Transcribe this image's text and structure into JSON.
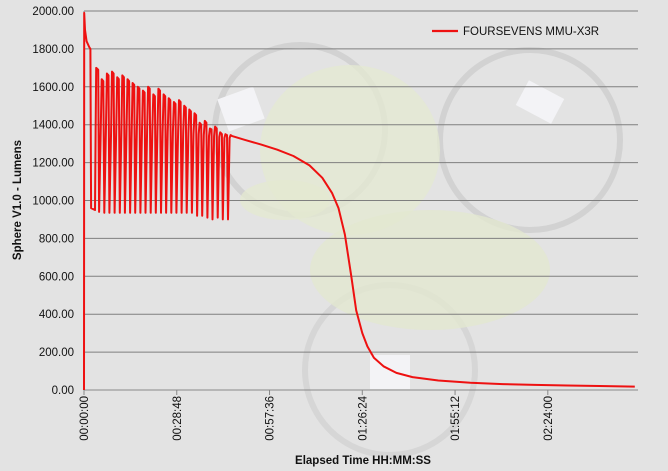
{
  "chart_data": {
    "type": "line",
    "title": "",
    "xlabel": "Elapsed Time HH:MM:SS",
    "ylabel": "Sphere V1.0 - Lumens",
    "ylim": [
      0,
      2000
    ],
    "y_ticks": [
      "0.00",
      "200.00",
      "400.00",
      "600.00",
      "800.00",
      "1000.00",
      "1200.00",
      "1400.00",
      "1600.00",
      "1800.00",
      "2000.00"
    ],
    "x_unit": "minutes",
    "xlim": [
      0,
      172
    ],
    "x_ticks": [
      {
        "value": 0,
        "label": "00:00:00"
      },
      {
        "value": 28.8,
        "label": "00:28:48"
      },
      {
        "value": 57.6,
        "label": "00:57:36"
      },
      {
        "value": 86.4,
        "label": "01:26:24"
      },
      {
        "value": 115.2,
        "label": "01:55:12"
      },
      {
        "value": 144,
        "label": "02:24:00"
      }
    ],
    "grid": true,
    "legend_position": "top-right",
    "series": [
      {
        "name": "FOURSEVENS MMU-X3R",
        "color": "#ee1111",
        "points": [
          [
            0,
            0
          ],
          [
            0.05,
            1990
          ],
          [
            0.3,
            1900
          ],
          [
            0.8,
            1840
          ],
          [
            1.6,
            1810
          ],
          [
            2.0,
            1800
          ],
          [
            2.2,
            960
          ],
          [
            3.4,
            950
          ],
          [
            3.6,
            1360
          ],
          [
            3.8,
            1700
          ],
          [
            4.4,
            1690
          ],
          [
            4.7,
            940
          ],
          [
            5.2,
            1360
          ],
          [
            5.5,
            1640
          ],
          [
            6.0,
            1630
          ],
          [
            6.3,
            935
          ],
          [
            6.8,
            1365
          ],
          [
            7.1,
            1670
          ],
          [
            7.6,
            1660
          ],
          [
            7.9,
            935
          ],
          [
            8.4,
            1365
          ],
          [
            8.7,
            1680
          ],
          [
            9.2,
            1670
          ],
          [
            9.5,
            935
          ],
          [
            10.0,
            1365
          ],
          [
            10.3,
            1650
          ],
          [
            10.8,
            1640
          ],
          [
            11.1,
            935
          ],
          [
            11.6,
            1365
          ],
          [
            11.9,
            1660
          ],
          [
            12.4,
            1650
          ],
          [
            12.7,
            935
          ],
          [
            13.2,
            1365
          ],
          [
            13.5,
            1640
          ],
          [
            14.0,
            1630
          ],
          [
            14.3,
            935
          ],
          [
            14.8,
            1365
          ],
          [
            15.1,
            1620
          ],
          [
            15.6,
            1610
          ],
          [
            15.9,
            935
          ],
          [
            16.4,
            1365
          ],
          [
            16.7,
            1600
          ],
          [
            17.2,
            1590
          ],
          [
            17.5,
            935
          ],
          [
            18.0,
            1365
          ],
          [
            18.3,
            1580
          ],
          [
            18.8,
            1570
          ],
          [
            19.1,
            935
          ],
          [
            19.6,
            1365
          ],
          [
            19.9,
            1600
          ],
          [
            20.4,
            1590
          ],
          [
            20.7,
            935
          ],
          [
            21.2,
            1365
          ],
          [
            21.5,
            1560
          ],
          [
            22.0,
            1550
          ],
          [
            22.3,
            935
          ],
          [
            22.8,
            1360
          ],
          [
            23.1,
            1590
          ],
          [
            23.6,
            1580
          ],
          [
            23.9,
            935
          ],
          [
            24.4,
            1360
          ],
          [
            24.7,
            1560
          ],
          [
            25.2,
            1550
          ],
          [
            25.5,
            935
          ],
          [
            26.0,
            1360
          ],
          [
            26.3,
            1540
          ],
          [
            26.8,
            1530
          ],
          [
            27.1,
            935
          ],
          [
            27.6,
            1360
          ],
          [
            27.9,
            1520
          ],
          [
            28.4,
            1510
          ],
          [
            28.7,
            935
          ],
          [
            29.2,
            1360
          ],
          [
            29.5,
            1530
          ],
          [
            30.0,
            1520
          ],
          [
            30.3,
            935
          ],
          [
            30.8,
            1355
          ],
          [
            31.1,
            1500
          ],
          [
            31.6,
            1490
          ],
          [
            31.9,
            935
          ],
          [
            32.4,
            1355
          ],
          [
            32.7,
            1480
          ],
          [
            33.2,
            1470
          ],
          [
            33.5,
            935
          ],
          [
            34.0,
            1350
          ],
          [
            34.3,
            1460
          ],
          [
            34.8,
            1450
          ],
          [
            35.1,
            920
          ],
          [
            35.6,
            1350
          ],
          [
            35.9,
            1410
          ],
          [
            36.4,
            1400
          ],
          [
            36.7,
            920
          ],
          [
            37.2,
            1345
          ],
          [
            37.5,
            1420
          ],
          [
            38.0,
            1410
          ],
          [
            38.3,
            910
          ],
          [
            38.8,
            1340
          ],
          [
            39.1,
            1380
          ],
          [
            39.6,
            1375
          ],
          [
            39.9,
            900
          ],
          [
            40.4,
            1340
          ],
          [
            40.7,
            1390
          ],
          [
            41.2,
            1380
          ],
          [
            41.5,
            910
          ],
          [
            42.0,
            1335
          ],
          [
            42.3,
            1360
          ],
          [
            42.8,
            1350
          ],
          [
            43.1,
            900
          ],
          [
            43.6,
            1330
          ],
          [
            43.9,
            1350
          ],
          [
            44.4,
            1345
          ],
          [
            44.7,
            900
          ],
          [
            45.2,
            1330
          ],
          [
            45.5,
            1345
          ],
          [
            46.0,
            1340
          ],
          [
            50,
            1320
          ],
          [
            55,
            1295
          ],
          [
            60,
            1268
          ],
          [
            65,
            1235
          ],
          [
            70,
            1185
          ],
          [
            74,
            1120
          ],
          [
            77,
            1040
          ],
          [
            79,
            960
          ],
          [
            81,
            820
          ],
          [
            83,
            600
          ],
          [
            84.5,
            420
          ],
          [
            86.4,
            300
          ],
          [
            88,
            230
          ],
          [
            90,
            170
          ],
          [
            93,
            125
          ],
          [
            97,
            90
          ],
          [
            102,
            68
          ],
          [
            110,
            50
          ],
          [
            120,
            38
          ],
          [
            130,
            31
          ],
          [
            140,
            27
          ],
          [
            150,
            24
          ],
          [
            160,
            21
          ],
          [
            171,
            18
          ]
        ]
      }
    ]
  }
}
